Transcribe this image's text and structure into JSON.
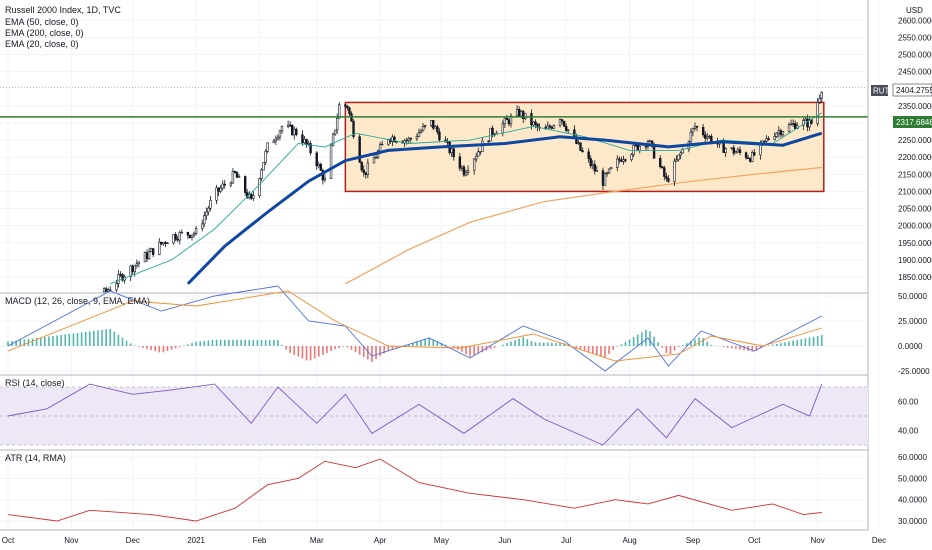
{
  "header": {
    "title": "Russell 2000 Index, 1D, TVC",
    "indicators": [
      "EMA (50, close, 0)",
      "EMA (200, close, 0)",
      "EMA (20, close, 0)"
    ]
  },
  "panes": {
    "macd_label": "MACD (12, 26, close, 9, EMA, EMA)",
    "rsi_label": "RSI (14, close)",
    "atr_label": "ATR (14, RMA)"
  },
  "currency": "USD",
  "price_tag": {
    "symbol": "RUT",
    "value": "2404.2755"
  },
  "level_tag": {
    "value": "2317.6846"
  },
  "colors": {
    "price_line": "#131722",
    "ema20": "#26a69a",
    "ema50": "#0d47a1",
    "ema200": "#f5a25d",
    "support": "#2e7d32",
    "box_fill": "#fde9c9",
    "box_border": "#b71c1c",
    "macd": "#4c6fdc",
    "signal": "#f08c2c",
    "hist_pos": "#26a69a",
    "hist_neg": "#ef5350",
    "rsi": "#7e57c2",
    "rsi_band": "#ede7f6",
    "atr": "#d32f2f"
  },
  "chart_data": [
    {
      "type": "candlestick",
      "title": "Russell 2000 Index, 1D, TVC",
      "x_axis_labels": [
        "Oct",
        "Nov",
        "Dec",
        "2021",
        "Feb",
        "Mar",
        "Apr",
        "May",
        "Jun",
        "Jul",
        "Aug",
        "Sep",
        "Oct",
        "Nov",
        "Dec"
      ],
      "y_ticks": [
        "2600.0000",
        "2550.0000",
        "2500.0000",
        "2450.0000",
        "2350.0000",
        "2300.0000",
        "2250.0000",
        "2200.0000",
        "2150.0000",
        "2100.0000",
        "2050.0000",
        "2000.0000",
        "1950.0000",
        "1900.0000",
        "1850.0000"
      ],
      "ylim": [
        1830,
        2640
      ],
      "close_path": [
        {
          "date": "2020-10-20",
          "value": 1620
        },
        {
          "date": "2020-11-05",
          "value": 1700
        },
        {
          "date": "2020-11-15",
          "value": 1790
        },
        {
          "date": "2020-11-25",
          "value": 1850
        },
        {
          "date": "2020-12-05",
          "value": 1900
        },
        {
          "date": "2020-12-20",
          "value": 1970
        },
        {
          "date": "2021-01-01",
          "value": 1980
        },
        {
          "date": "2021-01-10",
          "value": 2090
        },
        {
          "date": "2021-01-20",
          "value": 2150
        },
        {
          "date": "2021-01-28",
          "value": 2070
        },
        {
          "date": "2021-02-05",
          "value": 2230
        },
        {
          "date": "2021-02-12",
          "value": 2290
        },
        {
          "date": "2021-02-20",
          "value": 2270
        },
        {
          "date": "2021-02-28",
          "value": 2200
        },
        {
          "date": "2021-03-05",
          "value": 2130
        },
        {
          "date": "2021-03-12",
          "value": 2350
        },
        {
          "date": "2021-03-16",
          "value": 2350
        },
        {
          "date": "2021-03-24",
          "value": 2150
        },
        {
          "date": "2021-04-05",
          "value": 2260
        },
        {
          "date": "2021-04-15",
          "value": 2250
        },
        {
          "date": "2021-04-26",
          "value": 2300
        },
        {
          "date": "2021-05-12",
          "value": 2160
        },
        {
          "date": "2021-05-25",
          "value": 2270
        },
        {
          "date": "2021-06-08",
          "value": 2330
        },
        {
          "date": "2021-06-20",
          "value": 2270
        },
        {
          "date": "2021-06-28",
          "value": 2320
        },
        {
          "date": "2021-07-08",
          "value": 2220
        },
        {
          "date": "2021-07-19",
          "value": 2130
        },
        {
          "date": "2021-07-28",
          "value": 2200
        },
        {
          "date": "2021-08-10",
          "value": 2250
        },
        {
          "date": "2021-08-19",
          "value": 2130
        },
        {
          "date": "2021-09-02",
          "value": 2290
        },
        {
          "date": "2021-09-15",
          "value": 2230
        },
        {
          "date": "2021-09-30",
          "value": 2200
        },
        {
          "date": "2021-10-10",
          "value": 2270
        },
        {
          "date": "2021-10-22",
          "value": 2300
        },
        {
          "date": "2021-10-29",
          "value": 2300
        },
        {
          "date": "2021-11-03",
          "value": 2404
        }
      ],
      "ema20": [
        {
          "date": "2020-11-20",
          "value": 1830
        },
        {
          "date": "2020-12-20",
          "value": 1900
        },
        {
          "date": "2021-01-10",
          "value": 1990
        },
        {
          "date": "2021-02-01",
          "value": 2120
        },
        {
          "date": "2021-02-20",
          "value": 2240
        },
        {
          "date": "2021-03-05",
          "value": 2230
        },
        {
          "date": "2021-03-20",
          "value": 2270
        },
        {
          "date": "2021-04-15",
          "value": 2240
        },
        {
          "date": "2021-05-15",
          "value": 2250
        },
        {
          "date": "2021-06-15",
          "value": 2290
        },
        {
          "date": "2021-07-10",
          "value": 2260
        },
        {
          "date": "2021-08-01",
          "value": 2220
        },
        {
          "date": "2021-08-25",
          "value": 2220
        },
        {
          "date": "2021-09-15",
          "value": 2250
        },
        {
          "date": "2021-10-10",
          "value": 2240
        },
        {
          "date": "2021-11-03",
          "value": 2330
        }
      ],
      "ema50": [
        {
          "date": "2020-12-28",
          "value": 1830
        },
        {
          "date": "2021-01-15",
          "value": 1940
        },
        {
          "date": "2021-02-05",
          "value": 2040
        },
        {
          "date": "2021-02-25",
          "value": 2130
        },
        {
          "date": "2021-03-15",
          "value": 2190
        },
        {
          "date": "2021-04-05",
          "value": 2220
        },
        {
          "date": "2021-05-01",
          "value": 2230
        },
        {
          "date": "2021-06-01",
          "value": 2240
        },
        {
          "date": "2021-06-28",
          "value": 2260
        },
        {
          "date": "2021-07-20",
          "value": 2250
        },
        {
          "date": "2021-08-20",
          "value": 2230
        },
        {
          "date": "2021-09-15",
          "value": 2245
        },
        {
          "date": "2021-10-15",
          "value": 2235
        },
        {
          "date": "2021-11-03",
          "value": 2270
        }
      ],
      "ema200": [
        {
          "date": "2021-03-15",
          "value": 1830
        },
        {
          "date": "2021-04-15",
          "value": 1930
        },
        {
          "date": "2021-05-15",
          "value": 2010
        },
        {
          "date": "2021-06-20",
          "value": 2070
        },
        {
          "date": "2021-07-25",
          "value": 2100
        },
        {
          "date": "2021-09-01",
          "value": 2130
        },
        {
          "date": "2021-10-01",
          "value": 2150
        },
        {
          "date": "2021-11-03",
          "value": 2170
        }
      ],
      "range_box": {
        "start": "2021-03-15",
        "end": "2021-11-04",
        "low": 2100,
        "high": 2360
      },
      "support_level": 2317.6846,
      "last_price": 2404.2755
    },
    {
      "type": "line",
      "title": "MACD (12, 26, close, 9, EMA, EMA)",
      "y_ticks": [
        "50.0000",
        "25.0000",
        "0.0000",
        "-25.0000"
      ],
      "ylim": [
        -35,
        65
      ],
      "macd": [
        {
          "date": "2020-10-01",
          "value": 0
        },
        {
          "date": "2020-11-20",
          "value": 55
        },
        {
          "date": "2020-12-15",
          "value": 35
        },
        {
          "date": "2021-01-10",
          "value": 50
        },
        {
          "date": "2021-02-10",
          "value": 60
        },
        {
          "date": "2021-02-25",
          "value": 25
        },
        {
          "date": "2021-03-15",
          "value": 20
        },
        {
          "date": "2021-03-28",
          "value": -10
        },
        {
          "date": "2021-04-25",
          "value": 8
        },
        {
          "date": "2021-05-15",
          "value": -12
        },
        {
          "date": "2021-06-10",
          "value": 20
        },
        {
          "date": "2021-06-30",
          "value": 5
        },
        {
          "date": "2021-07-20",
          "value": -25
        },
        {
          "date": "2021-08-10",
          "value": 8
        },
        {
          "date": "2021-08-20",
          "value": -20
        },
        {
          "date": "2021-09-05",
          "value": 15
        },
        {
          "date": "2021-10-01",
          "value": -5
        },
        {
          "date": "2021-11-03",
          "value": 30
        }
      ],
      "signal": [
        {
          "date": "2020-10-01",
          "value": -5
        },
        {
          "date": "2020-12-01",
          "value": 45
        },
        {
          "date": "2021-01-01",
          "value": 40
        },
        {
          "date": "2021-02-15",
          "value": 55
        },
        {
          "date": "2021-03-10",
          "value": 25
        },
        {
          "date": "2021-04-05",
          "value": 0
        },
        {
          "date": "2021-05-10",
          "value": -2
        },
        {
          "date": "2021-06-15",
          "value": 12
        },
        {
          "date": "2021-07-25",
          "value": -15
        },
        {
          "date": "2021-08-25",
          "value": -8
        },
        {
          "date": "2021-09-10",
          "value": 10
        },
        {
          "date": "2021-10-05",
          "value": 0
        },
        {
          "date": "2021-11-03",
          "value": 18
        }
      ]
    },
    {
      "type": "line",
      "title": "RSI (14, close)",
      "y_ticks": [
        "60.00",
        "40.00"
      ],
      "ylim": [
        26,
        76
      ],
      "bands": [
        70,
        50,
        30
      ],
      "values": [
        {
          "date": "2020-10-01",
          "value": 50
        },
        {
          "date": "2020-10-20",
          "value": 55
        },
        {
          "date": "2020-11-10",
          "value": 72
        },
        {
          "date": "2020-12-01",
          "value": 65
        },
        {
          "date": "2020-12-20",
          "value": 68
        },
        {
          "date": "2021-01-10",
          "value": 72
        },
        {
          "date": "2021-01-28",
          "value": 45
        },
        {
          "date": "2021-02-10",
          "value": 70
        },
        {
          "date": "2021-03-01",
          "value": 45
        },
        {
          "date": "2021-03-15",
          "value": 65
        },
        {
          "date": "2021-03-28",
          "value": 38
        },
        {
          "date": "2021-04-20",
          "value": 58
        },
        {
          "date": "2021-05-12",
          "value": 38
        },
        {
          "date": "2021-06-05",
          "value": 62
        },
        {
          "date": "2021-06-20",
          "value": 48
        },
        {
          "date": "2021-07-19",
          "value": 30
        },
        {
          "date": "2021-08-05",
          "value": 55
        },
        {
          "date": "2021-08-19",
          "value": 35
        },
        {
          "date": "2021-09-02",
          "value": 62
        },
        {
          "date": "2021-09-20",
          "value": 42
        },
        {
          "date": "2021-10-15",
          "value": 58
        },
        {
          "date": "2021-10-28",
          "value": 50
        },
        {
          "date": "2021-11-03",
          "value": 72
        }
      ]
    },
    {
      "type": "line",
      "title": "ATR (14, RMA)",
      "y_ticks": [
        "60.0000",
        "50.0000",
        "40.0000",
        "30.0000"
      ],
      "ylim": [
        24,
        62
      ],
      "values": [
        {
          "date": "2020-10-01",
          "value": 33
        },
        {
          "date": "2020-10-25",
          "value": 30
        },
        {
          "date": "2020-11-10",
          "value": 35
        },
        {
          "date": "2020-12-10",
          "value": 33
        },
        {
          "date": "2021-01-01",
          "value": 30
        },
        {
          "date": "2021-01-20",
          "value": 36
        },
        {
          "date": "2021-02-05",
          "value": 47
        },
        {
          "date": "2021-02-20",
          "value": 50
        },
        {
          "date": "2021-03-05",
          "value": 58
        },
        {
          "date": "2021-03-20",
          "value": 55
        },
        {
          "date": "2021-04-01",
          "value": 59
        },
        {
          "date": "2021-04-20",
          "value": 48
        },
        {
          "date": "2021-05-15",
          "value": 43
        },
        {
          "date": "2021-06-10",
          "value": 40
        },
        {
          "date": "2021-07-05",
          "value": 36
        },
        {
          "date": "2021-07-25",
          "value": 40
        },
        {
          "date": "2021-08-10",
          "value": 38
        },
        {
          "date": "2021-08-25",
          "value": 42
        },
        {
          "date": "2021-09-20",
          "value": 35
        },
        {
          "date": "2021-10-10",
          "value": 38
        },
        {
          "date": "2021-10-25",
          "value": 33
        },
        {
          "date": "2021-11-03",
          "value": 34
        }
      ]
    }
  ]
}
